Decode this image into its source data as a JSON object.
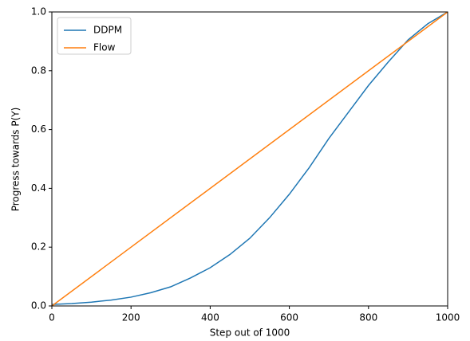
{
  "chart_data": {
    "type": "line",
    "xlabel": "Step out of 1000",
    "ylabel": "Progress towards P(Y)",
    "xlim": [
      0,
      1000
    ],
    "ylim": [
      0,
      1
    ],
    "xticks": [
      0,
      200,
      400,
      600,
      800,
      1000
    ],
    "yticks": [
      {
        "value": 0,
        "label": "0.0"
      },
      0.2,
      0.4,
      0.6,
      0.8,
      {
        "value": 1,
        "label": "1.0"
      }
    ],
    "grid": false,
    "legend": "upper left",
    "series": [
      {
        "name": "DDPM",
        "color": "#1f77b4",
        "x": [
          0,
          50,
          100,
          150,
          200,
          250,
          300,
          350,
          400,
          450,
          500,
          550,
          600,
          650,
          700,
          750,
          800,
          850,
          900,
          950,
          1000
        ],
        "values": [
          0.005,
          0.008,
          0.013,
          0.02,
          0.03,
          0.045,
          0.065,
          0.095,
          0.13,
          0.175,
          0.23,
          0.3,
          0.38,
          0.47,
          0.57,
          0.66,
          0.75,
          0.83,
          0.905,
          0.96,
          1.0
        ]
      },
      {
        "name": "Flow",
        "color": "#ff7f0e",
        "x": [
          0,
          1000
        ],
        "values": [
          0,
          1
        ]
      }
    ]
  }
}
